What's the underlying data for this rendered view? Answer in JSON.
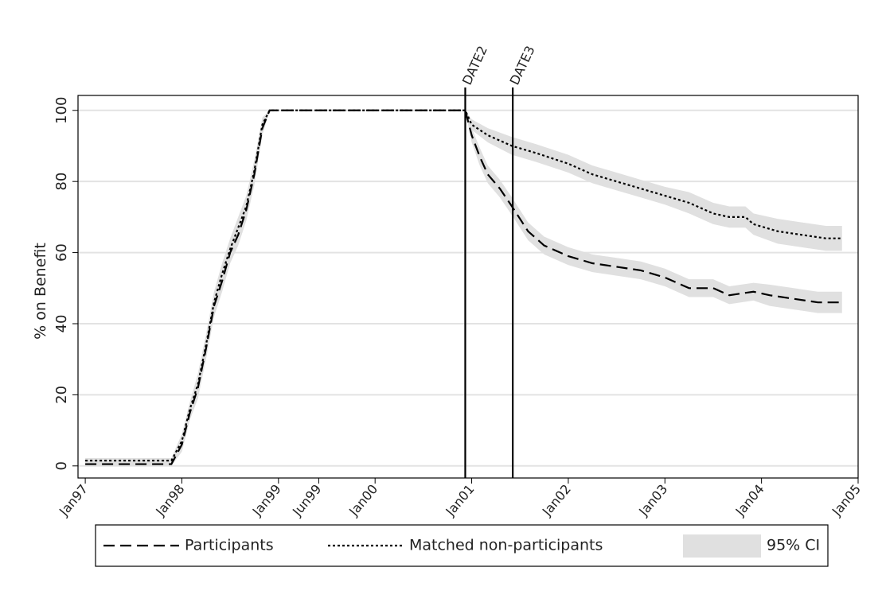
{
  "chart_data": {
    "type": "line",
    "y_label": "% on Benefit",
    "xlim": [
      -0.9,
      96
    ],
    "xticks": [
      {
        "value": 0,
        "label": "Jan97"
      },
      {
        "value": 12,
        "label": "Jan98"
      },
      {
        "value": 24,
        "label": "Jan99"
      },
      {
        "value": 29,
        "label": "Jun99"
      },
      {
        "value": 36,
        "label": "Jan00"
      },
      {
        "value": 48,
        "label": "Jan01"
      },
      {
        "value": 60,
        "label": "Jan02"
      },
      {
        "value": 72,
        "label": "Jan03"
      },
      {
        "value": 84,
        "label": "Jan04"
      },
      {
        "value": 96,
        "label": "Jan05"
      }
    ],
    "ylim": [
      -3.4,
      104.2
    ],
    "yticks": [
      0,
      20,
      40,
      60,
      80,
      100
    ],
    "grid": true,
    "annotations": [
      {
        "x": 47.2,
        "label": "DATE2"
      },
      {
        "x": 53.1,
        "label": "DATE3"
      }
    ],
    "ci": {
      "name": "95% CI",
      "color": "#e0e0e0"
    },
    "series": [
      {
        "name": "Participants",
        "color": "#000000",
        "dash": "14,7",
        "x": [
          0,
          10.7,
          12,
          13,
          14,
          15,
          16,
          17,
          18,
          19,
          20,
          21,
          22,
          22.9,
          47.2,
          48,
          49,
          50,
          51.5,
          53,
          55,
          57,
          60,
          63,
          66,
          69,
          72,
          75,
          78,
          80,
          83,
          85,
          88,
          91,
          94
        ],
        "values": [
          0.5,
          0.5,
          6,
          15,
          22,
          33,
          45,
          52,
          60,
          65,
          72,
          82,
          95,
          100,
          100,
          93,
          87,
          82,
          78,
          73,
          66,
          62,
          59,
          57,
          56,
          55,
          53,
          50,
          50,
          48,
          49,
          48,
          47,
          46,
          46
        ],
        "ci_lower": [
          0,
          0,
          4,
          13,
          19,
          30,
          42,
          49,
          57,
          62,
          69,
          79,
          93,
          100,
          100,
          91,
          84.5,
          79.5,
          75.5,
          70.5,
          63.5,
          59.5,
          56.5,
          54.5,
          53.5,
          52.5,
          50.5,
          47.5,
          47.5,
          45.5,
          46.5,
          45,
          44,
          43,
          43
        ],
        "ci_upper": [
          1,
          1,
          8,
          17,
          25,
          36,
          48,
          55,
          63,
          68,
          75,
          85,
          97,
          100,
          100,
          95,
          89.5,
          84.5,
          80.5,
          75.5,
          68.5,
          64.5,
          61.5,
          59.5,
          58.5,
          57.5,
          55.5,
          52.5,
          52.5,
          50.5,
          51.5,
          51,
          50,
          49,
          49
        ]
      },
      {
        "name": "Matched non-participants",
        "color": "#000000",
        "dash": "3,3",
        "x": [
          0,
          10.7,
          12,
          13,
          14,
          15,
          16,
          17,
          18,
          19,
          20,
          21,
          22,
          22.9,
          47.2,
          48,
          50,
          53,
          56,
          60,
          63,
          66,
          69,
          72,
          75,
          78,
          80,
          82,
          83,
          86,
          89,
          92,
          94
        ],
        "values": [
          1.5,
          1.5,
          7,
          16,
          23,
          34,
          46,
          54,
          61,
          67,
          73,
          83,
          96,
          100,
          100,
          96,
          93,
          90,
          88,
          85,
          82,
          80,
          78,
          76,
          74,
          71,
          70,
          70,
          68,
          66,
          65,
          64,
          64
        ],
        "ci_lower": [
          0.8,
          0.8,
          5,
          14,
          20,
          31,
          43,
          51,
          58,
          64,
          70,
          80,
          94,
          100,
          100,
          94.5,
          91,
          87.5,
          85.5,
          82.5,
          79.5,
          77.5,
          75.5,
          73.5,
          71,
          68,
          67,
          67,
          65,
          62.5,
          61.5,
          60.5,
          60.5
        ],
        "ci_upper": [
          2.2,
          2.2,
          9,
          18,
          26,
          37,
          49,
          57,
          64,
          70,
          76,
          86,
          98,
          100,
          100,
          97.5,
          95,
          92.5,
          90.5,
          87.5,
          84.5,
          82.5,
          80.5,
          78.5,
          77,
          74,
          73,
          73,
          71,
          69.5,
          68.5,
          67.5,
          67.5
        ]
      }
    ]
  }
}
